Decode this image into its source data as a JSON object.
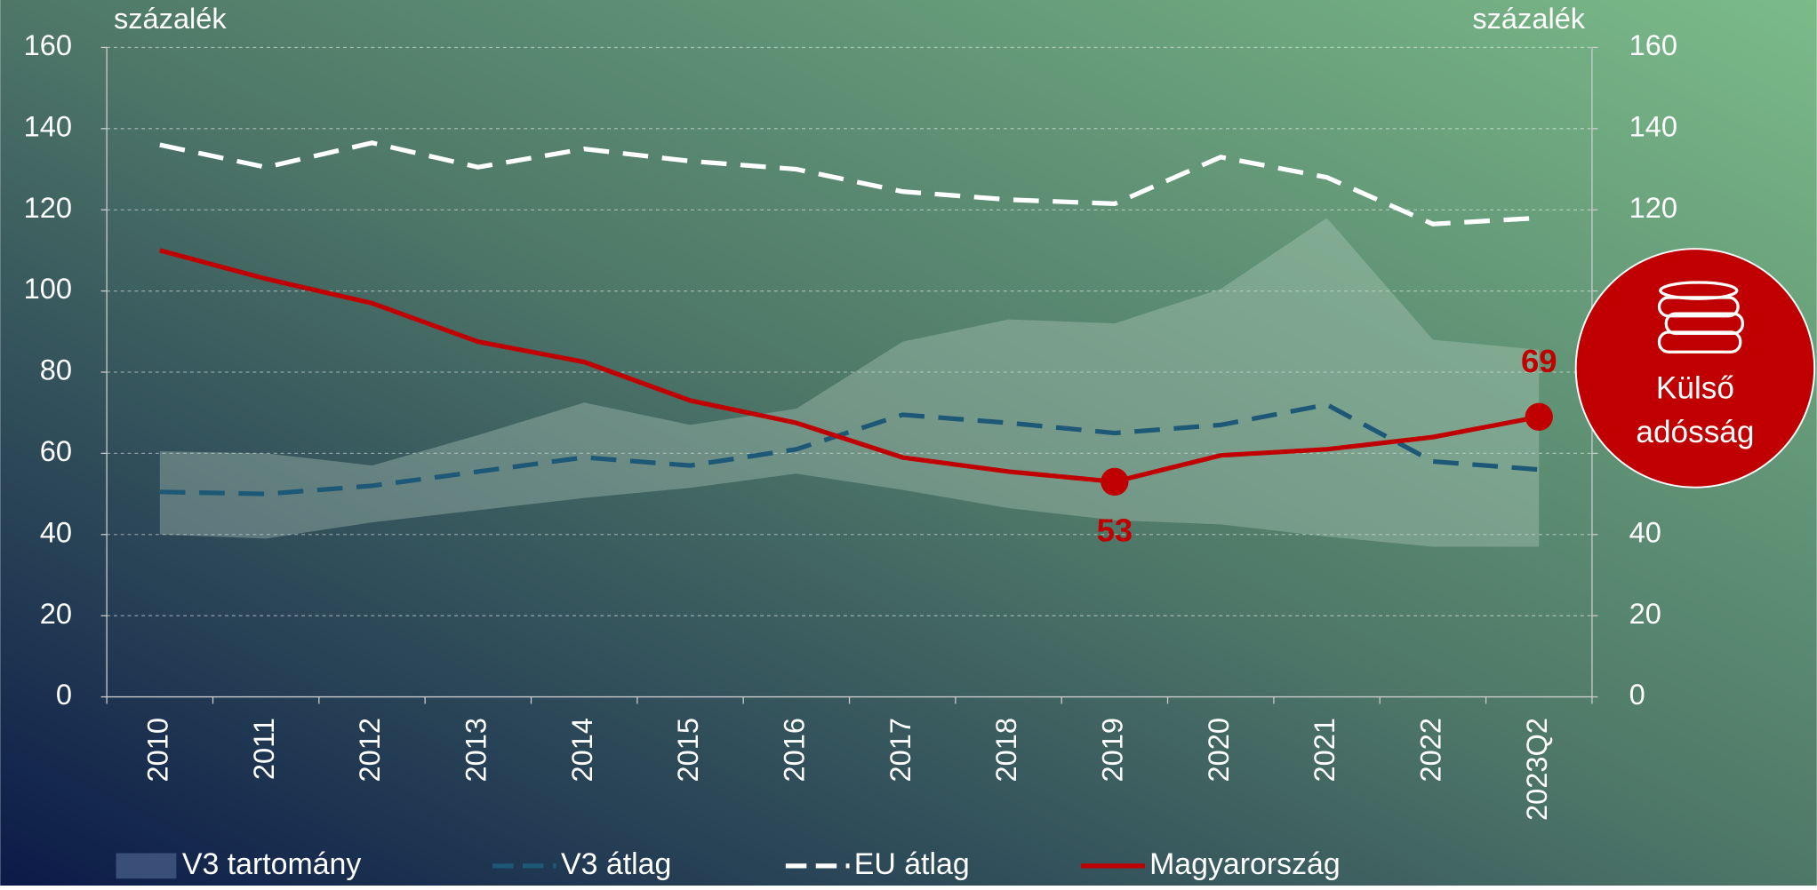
{
  "chart_data": {
    "type": "line",
    "y_label": "százalék",
    "y2_label": "százalék",
    "categories": [
      "2010",
      "2011",
      "2012",
      "2013",
      "2014",
      "2015",
      "2016",
      "2017",
      "2018",
      "2019",
      "2020",
      "2021",
      "2022",
      "2023Q2"
    ],
    "range": {
      "name": "V3 tartomány",
      "color": "#b9d2c4",
      "high": [
        60.5,
        60,
        57,
        64.5,
        72.5,
        67,
        71,
        87.5,
        93,
        92,
        100.5,
        118,
        88,
        85.5
      ],
      "low": [
        40,
        39,
        43,
        46,
        49,
        51.5,
        55,
        51,
        46.5,
        43.5,
        42.5,
        39.5,
        37,
        37
      ]
    },
    "series": [
      {
        "name": "V3 átlag",
        "color": "#1d5877",
        "dash": true,
        "values": [
          50.5,
          50,
          52,
          55.5,
          59,
          57,
          61,
          69.5,
          67.5,
          65,
          67,
          72,
          58,
          56
        ]
      },
      {
        "name": "EU átlag",
        "color": "#ffffff",
        "dash": true,
        "values": [
          136,
          130.5,
          136.5,
          130.5,
          135,
          132,
          130,
          124.5,
          122.5,
          121.5,
          133,
          128,
          116.5,
          118
        ]
      },
      {
        "name": "Magyarország",
        "color": "#c00000",
        "dash": false,
        "values": [
          110,
          103,
          97,
          87.5,
          82.5,
          73,
          67.5,
          59,
          55.5,
          53,
          59.5,
          61,
          64,
          69
        ],
        "value_labels": [
          null,
          null,
          null,
          null,
          null,
          null,
          null,
          null,
          null,
          "53",
          null,
          null,
          null,
          "69"
        ]
      }
    ],
    "ylim": [
      0,
      160
    ],
    "yticks": [
      0,
      20,
      40,
      60,
      80,
      100,
      120,
      140,
      160
    ],
    "y2lim": [
      0,
      160
    ],
    "y2ticks": [
      0,
      20,
      40,
      60,
      80,
      100,
      120,
      140,
      160
    ],
    "grid": true,
    "legend": "bottom"
  },
  "badge": {
    "lines": [
      "Külső",
      "adósság"
    ]
  }
}
